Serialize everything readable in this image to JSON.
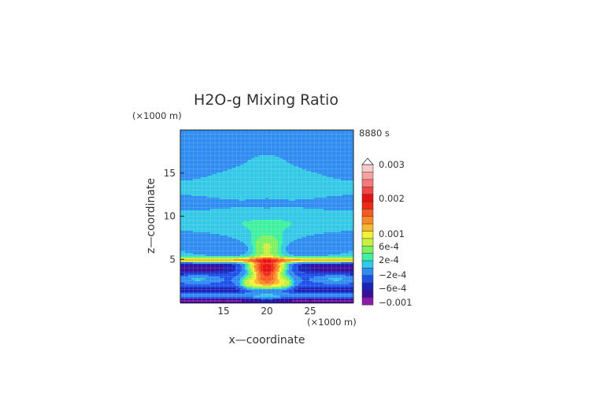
{
  "chart_data": {
    "type": "heatmap",
    "title": "H2O-g Mixing Ratio",
    "time_label": "8880 s",
    "xlabel": "x—coordinate",
    "ylabel": "z—coordinate",
    "x_unit": "(×1000 m)",
    "z_unit": "(×1000 m)",
    "xlim": [
      10,
      30
    ],
    "zlim": [
      0,
      20
    ],
    "x_ticks": [
      15,
      20,
      25
    ],
    "z_ticks": [
      5,
      10,
      15
    ],
    "grid": true,
    "colorbar": {
      "levels": [
        {
          "value": -0.001,
          "color": "#8c1aa8"
        },
        {
          "value": -0.0008,
          "color": "#3a0fa0"
        },
        {
          "value": -0.0006,
          "color": "#1a22b8"
        },
        {
          "value": -0.0004,
          "color": "#1e50e8"
        },
        {
          "value": -0.0002,
          "color": "#2f8cf0"
        },
        {
          "value": 0,
          "color": "#33c8e6"
        },
        {
          "value": 0.0001,
          "color": "#3ff0a0"
        },
        {
          "value": 0.0002,
          "color": "#7ef060"
        },
        {
          "value": 0.0004,
          "color": "#c8f040"
        },
        {
          "value": 0.0006,
          "color": "#f5f03a"
        },
        {
          "value": 0.0008,
          "color": "#f8b830"
        },
        {
          "value": 0.001,
          "color": "#f88a2a"
        },
        {
          "value": 0.0013,
          "color": "#f85a20"
        },
        {
          "value": 0.0017,
          "color": "#f02818"
        },
        {
          "value": 0.002,
          "color": "#e81010"
        },
        {
          "value": 0.0023,
          "color": "#f04848"
        },
        {
          "value": 0.0026,
          "color": "#f67878"
        },
        {
          "value": 0.0028,
          "color": "#f9a0a0"
        },
        {
          "value": 0.003,
          "color": "#fcc8c8"
        }
      ],
      "tick_labels": [
        "0.003",
        "0.002",
        "0.001",
        "6e-4",
        "2e-4",
        "−2e-4",
        "−6e-4",
        "−0.001"
      ]
    }
  }
}
